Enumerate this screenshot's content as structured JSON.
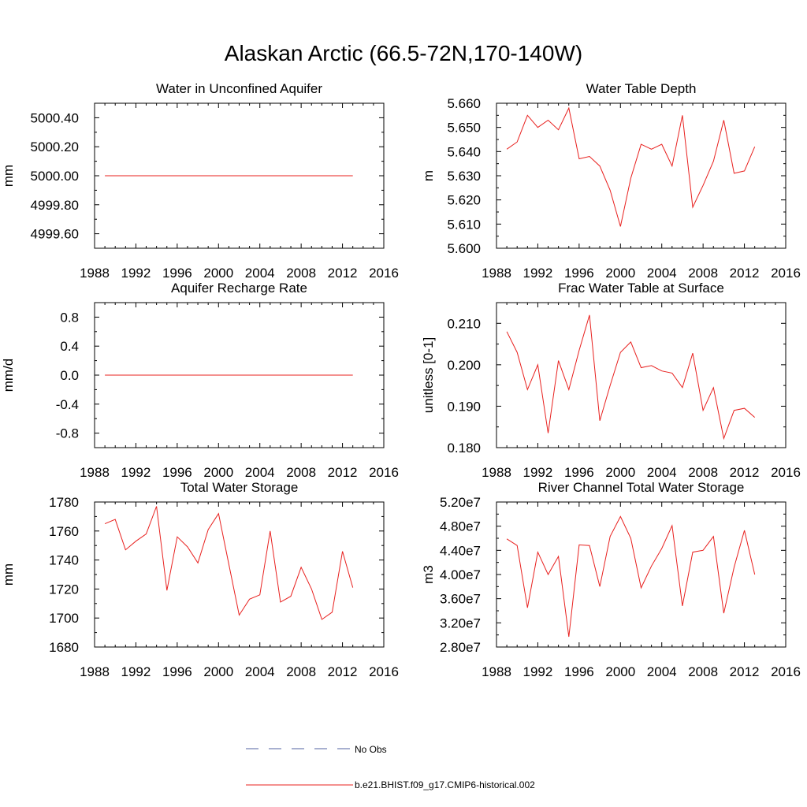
{
  "figure": {
    "title": "Alaskan Arctic (66.5-72N,170-140W)",
    "line_color": "#e8201e",
    "obs_color": "#5060a0",
    "legend": {
      "obs_label": "No Obs",
      "model_label": "b.e21.BHIST.f09_g17.CMIP6-historical.002"
    }
  },
  "chart_data": [
    {
      "type": "line",
      "title": "Water in Unconfined Aquifer",
      "ylabel": "mm",
      "xlim": [
        1988,
        2016
      ],
      "ylim": [
        4999.5,
        5000.5
      ],
      "yticks": [
        4999.6,
        4999.8,
        5000.0,
        5000.2,
        5000.4
      ],
      "ytick_labels": [
        "4999.60",
        "4999.80",
        "5000.00",
        "5000.20",
        "5000.40"
      ],
      "xticks": [
        1988,
        1992,
        1996,
        2000,
        2004,
        2008,
        2012,
        2016
      ],
      "x": [
        1989,
        1990,
        1991,
        1992,
        1993,
        1994,
        1995,
        1996,
        1997,
        1998,
        1999,
        2000,
        2001,
        2002,
        2003,
        2004,
        2005,
        2006,
        2007,
        2008,
        2009,
        2010,
        2011,
        2012,
        2013
      ],
      "values": [
        5000,
        5000,
        5000,
        5000,
        5000,
        5000,
        5000,
        5000,
        5000,
        5000,
        5000,
        5000,
        5000,
        5000,
        5000,
        5000,
        5000,
        5000,
        5000,
        5000,
        5000,
        5000,
        5000,
        5000,
        5000
      ]
    },
    {
      "type": "line",
      "title": "Water Table Depth",
      "ylabel": "m",
      "xlim": [
        1988,
        2016
      ],
      "ylim": [
        5.6,
        5.66
      ],
      "yticks": [
        5.6,
        5.61,
        5.62,
        5.63,
        5.64,
        5.65,
        5.66
      ],
      "ytick_labels": [
        "5.600",
        "5.610",
        "5.620",
        "5.630",
        "5.640",
        "5.650",
        "5.660"
      ],
      "xticks": [
        1988,
        1992,
        1996,
        2000,
        2004,
        2008,
        2012,
        2016
      ],
      "x": [
        1989,
        1990,
        1991,
        1992,
        1993,
        1994,
        1995,
        1996,
        1997,
        1998,
        1999,
        2000,
        2001,
        2002,
        2003,
        2004,
        2005,
        2006,
        2007,
        2008,
        2009,
        2010,
        2011,
        2012,
        2013
      ],
      "values": [
        5.641,
        5.644,
        5.655,
        5.65,
        5.653,
        5.649,
        5.658,
        5.637,
        5.638,
        5.634,
        5.624,
        5.609,
        5.629,
        5.643,
        5.641,
        5.643,
        5.634,
        5.655,
        5.617,
        5.626,
        5.636,
        5.653,
        5.631,
        5.632,
        5.642
      ]
    },
    {
      "type": "line",
      "title": "Aquifer Recharge Rate",
      "ylabel": "mm/d",
      "xlim": [
        1988,
        2016
      ],
      "ylim": [
        -1.0,
        1.0
      ],
      "yticks": [
        -0.8,
        -0.4,
        0.0,
        0.4,
        0.8
      ],
      "ytick_labels": [
        "-0.8",
        "-0.4",
        "0.0",
        "0.4",
        "0.8"
      ],
      "xticks": [
        1988,
        1992,
        1996,
        2000,
        2004,
        2008,
        2012,
        2016
      ],
      "x": [
        1989,
        1990,
        1991,
        1992,
        1993,
        1994,
        1995,
        1996,
        1997,
        1998,
        1999,
        2000,
        2001,
        2002,
        2003,
        2004,
        2005,
        2006,
        2007,
        2008,
        2009,
        2010,
        2011,
        2012,
        2013
      ],
      "values": [
        0,
        0,
        0,
        0,
        0,
        0,
        0,
        0,
        0,
        0,
        0,
        0,
        0,
        0,
        0,
        0,
        0,
        0,
        0,
        0,
        0,
        0,
        0,
        0,
        0
      ]
    },
    {
      "type": "line",
      "title": "Frac Water Table at Surface",
      "ylabel": "unitless [0-1]",
      "xlim": [
        1988,
        2016
      ],
      "ylim": [
        0.18,
        0.215
      ],
      "yticks": [
        0.18,
        0.19,
        0.2,
        0.21
      ],
      "ytick_labels": [
        "0.180",
        "0.190",
        "0.200",
        "0.210"
      ],
      "xticks": [
        1988,
        1992,
        1996,
        2000,
        2004,
        2008,
        2012,
        2016
      ],
      "x": [
        1989,
        1990,
        1991,
        1992,
        1993,
        1994,
        1995,
        1996,
        1997,
        1998,
        1999,
        2000,
        2001,
        2002,
        2003,
        2004,
        2005,
        2006,
        2007,
        2008,
        2009,
        2010,
        2011,
        2012,
        2013
      ],
      "values": [
        0.208,
        0.203,
        0.194,
        0.2,
        0.1835,
        0.201,
        0.194,
        0.2035,
        0.212,
        0.1865,
        0.195,
        0.203,
        0.2055,
        0.1993,
        0.1998,
        0.1985,
        0.198,
        0.1945,
        0.2028,
        0.189,
        0.1945,
        0.1822,
        0.189,
        0.1895,
        0.1873
      ]
    },
    {
      "type": "line",
      "title": "Total Water Storage",
      "ylabel": "mm",
      "xlim": [
        1988,
        2016
      ],
      "ylim": [
        1680,
        1780
      ],
      "yticks": [
        1680,
        1700,
        1720,
        1740,
        1760,
        1780
      ],
      "ytick_labels": [
        "1680",
        "1700",
        "1720",
        "1740",
        "1760",
        "1780"
      ],
      "xticks": [
        1988,
        1992,
        1996,
        2000,
        2004,
        2008,
        2012,
        2016
      ],
      "x": [
        1989,
        1990,
        1991,
        1992,
        1993,
        1994,
        1995,
        1996,
        1997,
        1998,
        1999,
        2000,
        2001,
        2002,
        2003,
        2004,
        2005,
        2006,
        2007,
        2008,
        2009,
        2010,
        2011,
        2012,
        2013
      ],
      "values": [
        1765,
        1768,
        1747,
        1753,
        1758,
        1777,
        1719,
        1756,
        1749,
        1738,
        1761,
        1772,
        1737,
        1702,
        1713,
        1716,
        1760,
        1711,
        1715,
        1735,
        1720,
        1699,
        1704,
        1746,
        1721
      ]
    },
    {
      "type": "line",
      "title": "River Channel Total Water Storage",
      "ylabel": "m3",
      "xlim": [
        1988,
        2016
      ],
      "ylim": [
        28000000.0,
        52000000.0
      ],
      "yticks": [
        28000000.0,
        32000000.0,
        36000000.0,
        40000000.0,
        44000000.0,
        48000000.0,
        52000000.0
      ],
      "ytick_labels": [
        "2.80e7",
        "3.20e7",
        "3.60e7",
        "4.00e7",
        "4.40e7",
        "4.80e7",
        "5.20e7"
      ],
      "xticks": [
        1988,
        1992,
        1996,
        2000,
        2004,
        2008,
        2012,
        2016
      ],
      "x": [
        1989,
        1990,
        1991,
        1992,
        1993,
        1994,
        1995,
        1996,
        1997,
        1998,
        1999,
        2000,
        2001,
        2002,
        2003,
        2004,
        2005,
        2006,
        2007,
        2008,
        2009,
        2010,
        2011,
        2012,
        2013
      ],
      "values": [
        45900000.0,
        44800000.0,
        34500000.0,
        43700000.0,
        40000000.0,
        43000000.0,
        29700000.0,
        44900000.0,
        44800000.0,
        38000000.0,
        46300000.0,
        49600000.0,
        46000000.0,
        37800000.0,
        41400000.0,
        44300000.0,
        48100000.0,
        34800000.0,
        43700000.0,
        44000000.0,
        46300000.0,
        33600000.0,
        41200000.0,
        47300000.0,
        40000000.0
      ]
    }
  ]
}
